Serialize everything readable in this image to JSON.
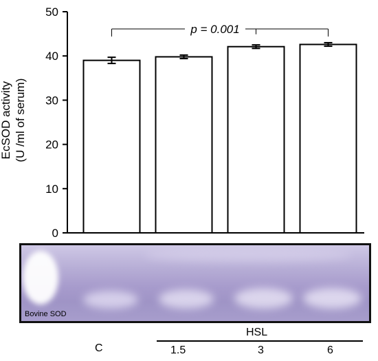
{
  "chart_data": {
    "type": "bar",
    "categories": [
      "C",
      "1.5",
      "3",
      "6"
    ],
    "values": [
      39.0,
      39.8,
      42.1,
      42.6
    ],
    "errors": [
      0.7,
      0.4,
      0.4,
      0.4
    ],
    "ylabel_lines": [
      "EcSOD activity",
      "(U /ml of serum)"
    ],
    "ylim": [
      0,
      50
    ],
    "yticks": [
      0,
      10,
      20,
      30,
      40,
      50
    ],
    "group_label": "HSL",
    "grid": false,
    "annotation": {
      "text": "p = 0.001"
    },
    "bar_color": "#ffffff"
  },
  "gel": {
    "label": "Bovine SOD"
  }
}
